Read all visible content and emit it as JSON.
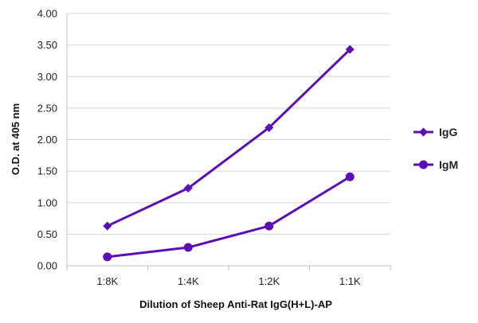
{
  "chart_data": {
    "type": "line",
    "title": "",
    "xlabel": "Dilution of Sheep Anti-Rat IgG(H+L)-AP",
    "ylabel": "O.D. at 405 nm",
    "categories": [
      "1:8K",
      "1:4K",
      "1:2K",
      "1:1K"
    ],
    "ylim": [
      0,
      4
    ],
    "yticks": [
      "0.00",
      "0.50",
      "1.00",
      "1.50",
      "2.00",
      "2.50",
      "3.00",
      "3.50",
      "4.00"
    ],
    "grid": true,
    "legend_position": "right",
    "series": [
      {
        "name": "IgG",
        "marker": "diamond",
        "color": "#5b0fb5",
        "values": [
          0.63,
          1.23,
          2.19,
          3.43
        ]
      },
      {
        "name": "IgM",
        "marker": "circle",
        "color": "#5b0fb5",
        "values": [
          0.14,
          0.29,
          0.63,
          1.41
        ]
      }
    ]
  }
}
